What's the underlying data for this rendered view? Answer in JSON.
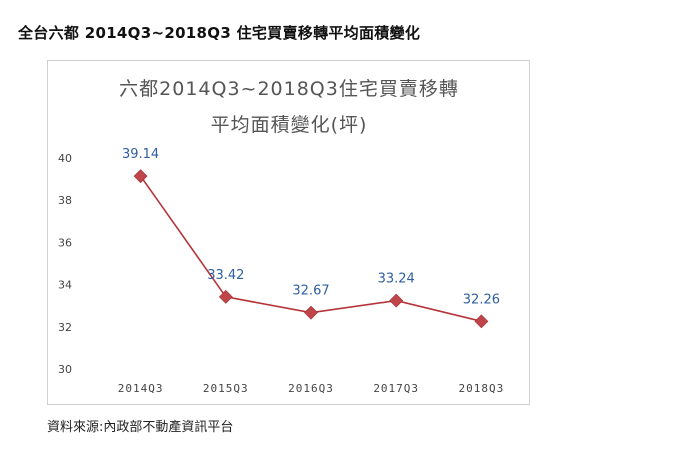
{
  "header": {
    "title": "全台六都 2014Q3~2018Q3 住宅買賣移轉平均面積變化"
  },
  "footer": {
    "source": "資料來源:內政部不動產資訊平台"
  },
  "colors": {
    "line": "#b5343a",
    "marker": "#c0454a",
    "data_label": "#2f5fa0"
  },
  "chart_data": {
    "type": "line",
    "title": "六都2014Q3~2018Q3住宅買賣移轉",
    "subtitle": "平均面積變化(坪)",
    "xlabel": "",
    "ylabel": "",
    "categories": [
      "2014Q3",
      "2015Q3",
      "2016Q3",
      "2017Q3",
      "2018Q3"
    ],
    "series": [
      {
        "values": [
          39.14,
          33.42,
          32.67,
          33.24,
          32.26
        ]
      }
    ],
    "data_labels": [
      "39.14",
      "33.42",
      "32.67",
      "33.24",
      "32.26"
    ],
    "ylim": [
      30,
      40
    ],
    "yticks": [
      30,
      32,
      34,
      36,
      38,
      40
    ],
    "grid": false,
    "legend": "none"
  }
}
